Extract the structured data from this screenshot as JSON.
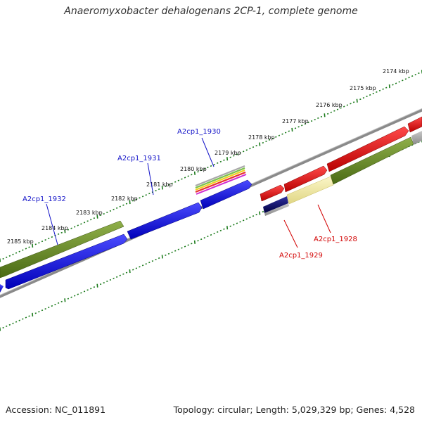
{
  "title": "Anaeromyxobacter dehalogenans 2CP-1, complete genome",
  "footer": {
    "accession": "Accession: NC_011891",
    "summary": "Topology: circular; Length: 5,029,329 bp; Genes: 4,528"
  },
  "colors": {
    "tick_green": "#1a7a1a",
    "backbone": "#8a8a8a",
    "gene_blue": "#1010e8",
    "gene_olive": "#6b8c22",
    "gene_red": "#e80000",
    "gene_navy": "#0a0a6a",
    "gene_pale_yellow": "#f2ec9e",
    "label_blue": "#1212c8",
    "label_red": "#d20000"
  },
  "ruler": {
    "ticks": [
      {
        "label": "2174 kbp"
      },
      {
        "label": "2175 kbp"
      },
      {
        "label": "2176 kbp"
      },
      {
        "label": "2177 kbp"
      },
      {
        "label": "2178 kbp"
      },
      {
        "label": "2179 kbp"
      },
      {
        "label": "2180 kbp"
      },
      {
        "label": "2181 kbp"
      },
      {
        "label": "2182 kbp"
      },
      {
        "label": "2183 kbp"
      },
      {
        "label": "2184 kbp"
      },
      {
        "label": "2185 kbp"
      }
    ]
  },
  "gene_labels": [
    {
      "name": "A2cp1_1930",
      "color": "label_blue"
    },
    {
      "name": "A2cp1_1931",
      "color": "label_blue"
    },
    {
      "name": "A2cp1_1932",
      "color": "label_blue"
    },
    {
      "name": "A2cp1_1928",
      "color": "label_red"
    },
    {
      "name": "A2cp1_1929",
      "color": "label_red"
    }
  ]
}
